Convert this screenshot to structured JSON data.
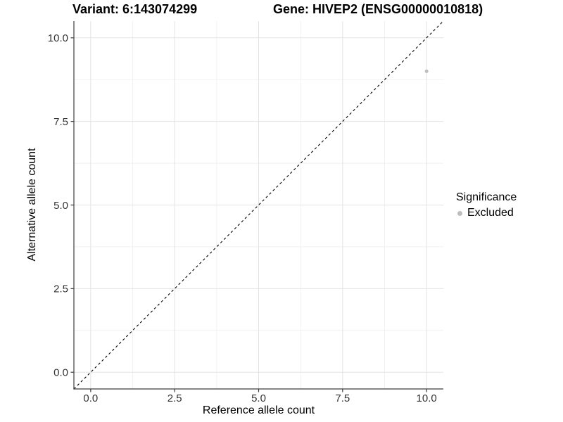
{
  "chart_data": {
    "type": "scatter",
    "titles": {
      "left": "Variant: 6:143074299",
      "right": "Gene: HIVEP2 (ENSG00000010818)"
    },
    "xlabel": "Reference allele count",
    "ylabel": "Alternative allele count",
    "xlim": [
      -0.5,
      10.5
    ],
    "ylim": [
      -0.5,
      10.5
    ],
    "x_major_ticks": [
      0,
      2.5,
      5,
      7.5,
      10
    ],
    "x_tick_labels": [
      "0.0",
      "2.5",
      "5.0",
      "7.5",
      "10.0"
    ],
    "y_major_ticks": [
      0,
      2.5,
      5,
      7.5,
      10
    ],
    "y_tick_labels": [
      "0.0",
      "2.5",
      "5.0",
      "7.5",
      "10.0"
    ],
    "x_minor_ticks": [
      1.25,
      3.75,
      6.25,
      8.75
    ],
    "y_minor_ticks": [
      1.25,
      3.75,
      6.25,
      8.75
    ],
    "grid": "major+minor",
    "identity_line": {
      "slope": 1,
      "intercept": 0,
      "style": "dashed",
      "color": "#000000"
    },
    "series": [
      {
        "name": "Excluded",
        "color": "#bebebe",
        "points": [
          {
            "x": 10,
            "y": 9
          }
        ]
      }
    ],
    "legend": {
      "title": "Significance",
      "position": "right",
      "entries": [
        {
          "label": "Excluded",
          "color": "#bebebe"
        }
      ]
    },
    "style": {
      "grid_major_color": "#e3e3e3",
      "grid_minor_color": "#f1f1f1",
      "axis_color": "#3c3c3c",
      "tick_label_color": "#333333",
      "point_radius_px": 2.5,
      "legend_point_radius_px": 3.5
    }
  }
}
